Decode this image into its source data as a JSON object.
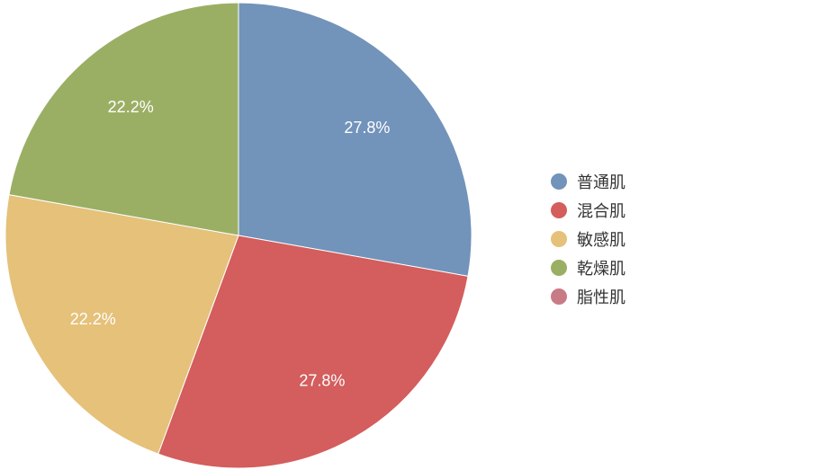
{
  "chart_data": {
    "type": "pie",
    "title": "",
    "legend_position": "right",
    "series": [
      {
        "slices": [
          {
            "label": "普通肌",
            "value": 27.8,
            "value_label": "27.8%",
            "color": "#7293ba"
          },
          {
            "label": "混合肌",
            "value": 27.8,
            "value_label": "27.8%",
            "color": "#d45d5d"
          },
          {
            "label": "敏感肌",
            "value": 22.2,
            "value_label": "22.2%",
            "color": "#e5c17a"
          },
          {
            "label": "乾燥肌",
            "value": 22.2,
            "value_label": "22.2%",
            "color": "#9baf64"
          },
          {
            "label": "脂性肌",
            "value": 0,
            "value_label": "",
            "color": "#c87b85"
          }
        ]
      }
    ]
  }
}
